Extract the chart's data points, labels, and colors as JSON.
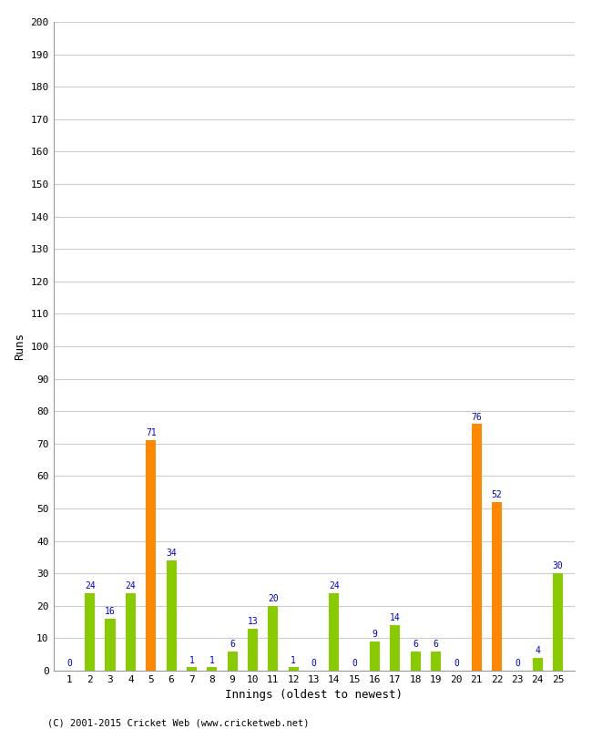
{
  "innings": [
    1,
    2,
    3,
    4,
    5,
    6,
    7,
    8,
    9,
    10,
    11,
    12,
    13,
    14,
    15,
    16,
    17,
    18,
    19,
    20,
    21,
    22,
    23,
    24,
    25
  ],
  "values": [
    0,
    24,
    16,
    24,
    71,
    34,
    1,
    1,
    6,
    13,
    20,
    1,
    0,
    24,
    0,
    9,
    14,
    6,
    6,
    0,
    76,
    52,
    0,
    4,
    30
  ],
  "colors": [
    "#88cc00",
    "#88cc00",
    "#88cc00",
    "#88cc00",
    "#ff8800",
    "#88cc00",
    "#88cc00",
    "#88cc00",
    "#88cc00",
    "#88cc00",
    "#88cc00",
    "#88cc00",
    "#88cc00",
    "#88cc00",
    "#88cc00",
    "#88cc00",
    "#88cc00",
    "#88cc00",
    "#88cc00",
    "#88cc00",
    "#ff8800",
    "#ff8800",
    "#88cc00",
    "#88cc00",
    "#88cc00"
  ],
  "xlabel": "Innings (oldest to newest)",
  "ylabel": "Runs",
  "ylim": [
    0,
    200
  ],
  "label_color": "#0000cc",
  "background_color": "#ffffff",
  "grid_color": "#cccccc",
  "footer": "(C) 2001-2015 Cricket Web (www.cricketweb.net)",
  "bar_width": 0.5
}
